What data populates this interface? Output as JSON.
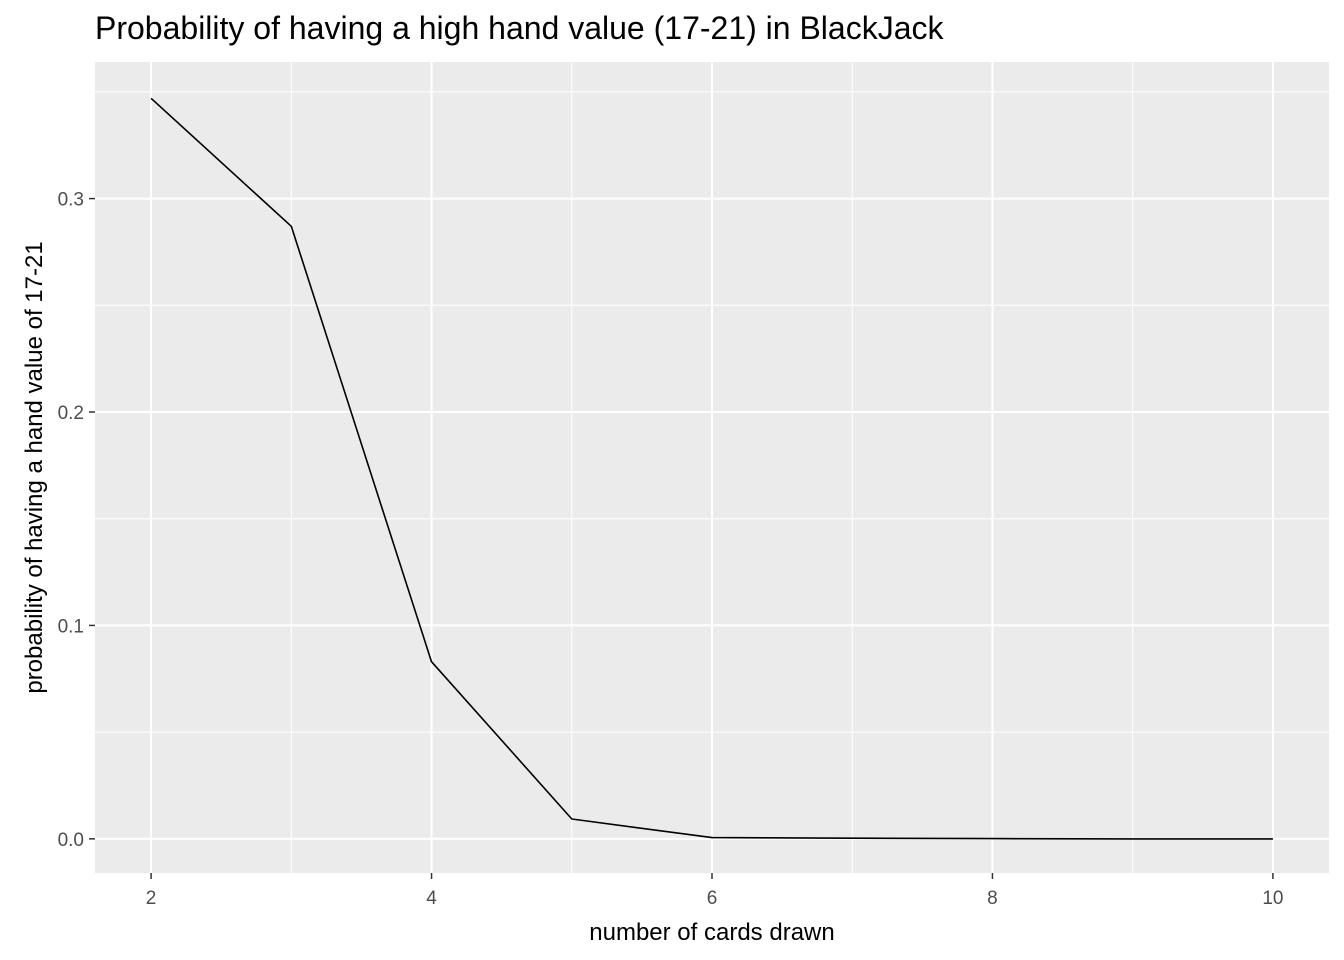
{
  "chart_data": {
    "type": "line",
    "title": "Probability of having a high hand value (17-21) in BlackJack",
    "xlabel": "number of cards drawn",
    "ylabel": "probability of having a hand value of 17-21",
    "x": [
      2,
      3,
      4,
      5,
      6,
      7,
      8,
      9,
      10
    ],
    "series": [
      {
        "values": [
          0.347,
          0.287,
          0.083,
          0.0093,
          0.0006,
          0.0003,
          0.0001,
          0.0,
          0.0
        ]
      }
    ],
    "xlim": [
      1.6,
      10.4
    ],
    "ylim": [
      -0.016,
      0.364
    ],
    "x_ticks": [
      2,
      4,
      6,
      8,
      10
    ],
    "x_tick_labels": [
      "2",
      "4",
      "6",
      "8",
      "10"
    ],
    "y_ticks": [
      0.0,
      0.1,
      0.2,
      0.3
    ],
    "y_tick_labels": [
      "0.0",
      "0.1",
      "0.2",
      "0.3"
    ],
    "grid": true,
    "colors": {
      "panel": "#ebebeb",
      "grid": "#ffffff",
      "line": "#000000"
    }
  }
}
